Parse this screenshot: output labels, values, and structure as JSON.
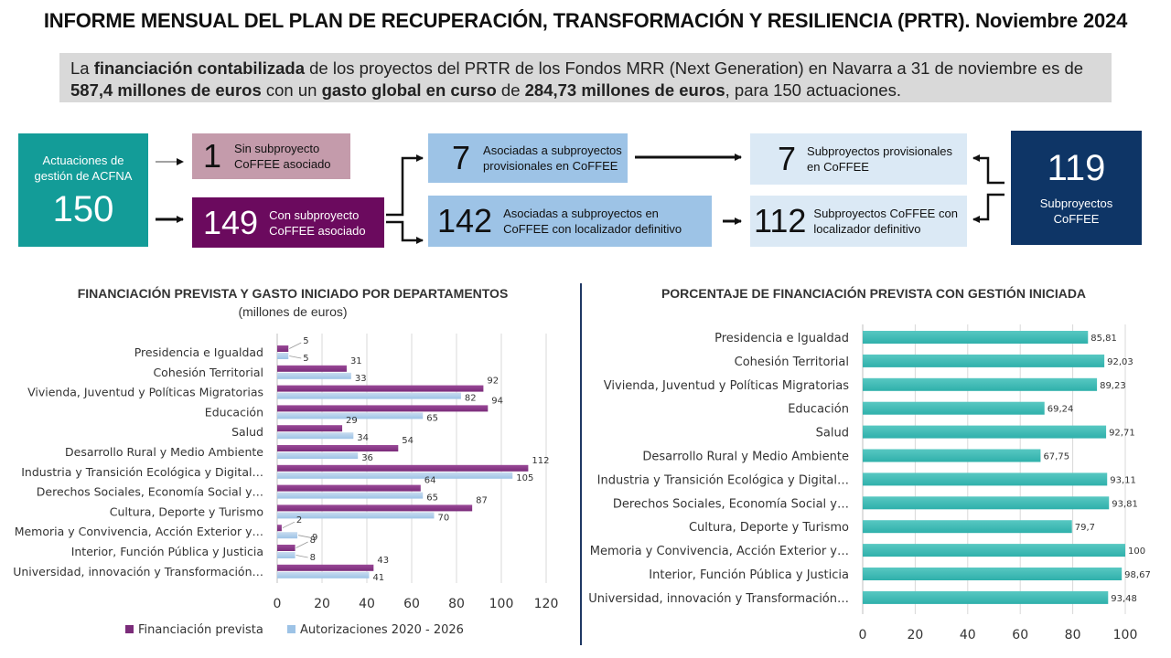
{
  "title": "INFORME MENSUAL DEL PLAN DE RECUPERACIÓN, TRANSFORMACIÓN Y RESILIENCIA (PRTR). Noviembre 2024",
  "summary": {
    "p1": "La ",
    "b1": "financiación contabilizada",
    "p2": " de los proyectos del PRTR de los Fondos MRR (Next Generation) en Navarra a 31 de noviembre es de ",
    "b2": "587,4 millones de euros",
    "p3": " con un ",
    "b3": "gasto global en curso",
    "p4": " de ",
    "b4": "284,73 millones de euros",
    "p5": ", para 150 actuaciones."
  },
  "flow": {
    "acfna": {
      "label": "Actuaciones de gestión de ACFNA",
      "value": "150"
    },
    "sin": {
      "value": "1",
      "label": "Sin subproyecto CoFFEE asociado"
    },
    "con": {
      "value": "149",
      "label": "Con subproyecto CoFFEE asociado"
    },
    "asoc_prov": {
      "value": "7",
      "label": "Asociadas a subproyectos provisionales en CoFFEE"
    },
    "asoc_def": {
      "value": "142",
      "label": "Asociadas a subproyectos en CoFFEE con localizador definitivo"
    },
    "sub_prov": {
      "value": "7",
      "label": "Subproyectos provisionales en CoFFEE"
    },
    "sub_def": {
      "value": "112",
      "label": "Subproyectos CoFFEE con localizador definitivo"
    },
    "total": {
      "value": "119",
      "label": "Subproyectos CoFFEE"
    },
    "colors": {
      "teal": "#139c98",
      "pink": "#c49bab",
      "purple": "#6b0a5e",
      "lightblue": "#9dc3e6",
      "paleblue": "#dbe9f5",
      "navy": "#0e3566"
    }
  },
  "left_panel": {
    "title": "FINANCIACIÓN PREVISTA Y GASTO INICIADO POR DEPARTAMENTOS",
    "subtitle": "(millones de euros)"
  },
  "right_panel": {
    "title": "PORCENTAJE DE FINANCIACIÓN PREVISTA CON GESTIÓN INICIADA"
  },
  "chart_data": [
    {
      "type": "bar",
      "orientation": "horizontal",
      "categories": [
        "Presidencia e Igualdad",
        "Cohesión Territorial",
        "Vivienda, Juventud y Políticas Migratorias",
        "Educación",
        "Salud",
        "Desarrollo Rural y Medio Ambiente",
        "Industria y Transición Ecológica y Digital…",
        "Derechos Sociales, Economía Social y…",
        "Cultura, Deporte y Turismo",
        "Memoria y Convivencia, Acción Exterior y…",
        "Interior, Función Pública y Justicia",
        "Universidad, innovación y Transformación…"
      ],
      "series": [
        {
          "name": "Financiación prevista",
          "color": "#7b2c7a",
          "values": [
            5,
            31,
            92,
            94,
            29,
            54,
            112,
            64,
            87,
            2,
            8,
            43
          ]
        },
        {
          "name": "Autorizaciones 2020 - 2026",
          "color": "#9dc3e6",
          "values": [
            5,
            33,
            82,
            65,
            34,
            36,
            105,
            65,
            70,
            9,
            8,
            41
          ]
        }
      ],
      "xlim": [
        0,
        120
      ],
      "xticks": [
        "0",
        "20",
        "40",
        "60",
        "80",
        "100",
        "120"
      ],
      "grid": true,
      "legend": "bottom"
    },
    {
      "type": "bar",
      "orientation": "horizontal",
      "categories": [
        "Presidencia e Igualdad",
        "Cohesión Territorial",
        "Vivienda, Juventud y Políticas Migratorias",
        "Educación",
        "Salud",
        "Desarrollo Rural y Medio Ambiente",
        "Industria y Transición Ecológica y Digital…",
        "Derechos Sociales, Economía Social y…",
        "Cultura, Deporte y Turismo",
        "Memoria y Convivencia, Acción Exterior y…",
        "Interior, Función Pública y Justicia",
        "Universidad, innovación y Transformación…"
      ],
      "series": [
        {
          "color": "#2fb0ab",
          "values": [
            85.81,
            92.03,
            89.23,
            69.24,
            92.71,
            67.75,
            93.11,
            93.81,
            79.7,
            100,
            98.67,
            93.48
          ],
          "labels": [
            "85,81",
            "92,03",
            "89,23",
            "69,24",
            "92,71",
            "67,75",
            "93,11",
            "93,81",
            "79,7",
            "100",
            "98,67",
            "93,48"
          ]
        }
      ],
      "xlim": [
        0,
        100
      ],
      "xticks": [
        "0",
        "20",
        "40",
        "60",
        "80",
        "100"
      ],
      "grid": true
    }
  ]
}
